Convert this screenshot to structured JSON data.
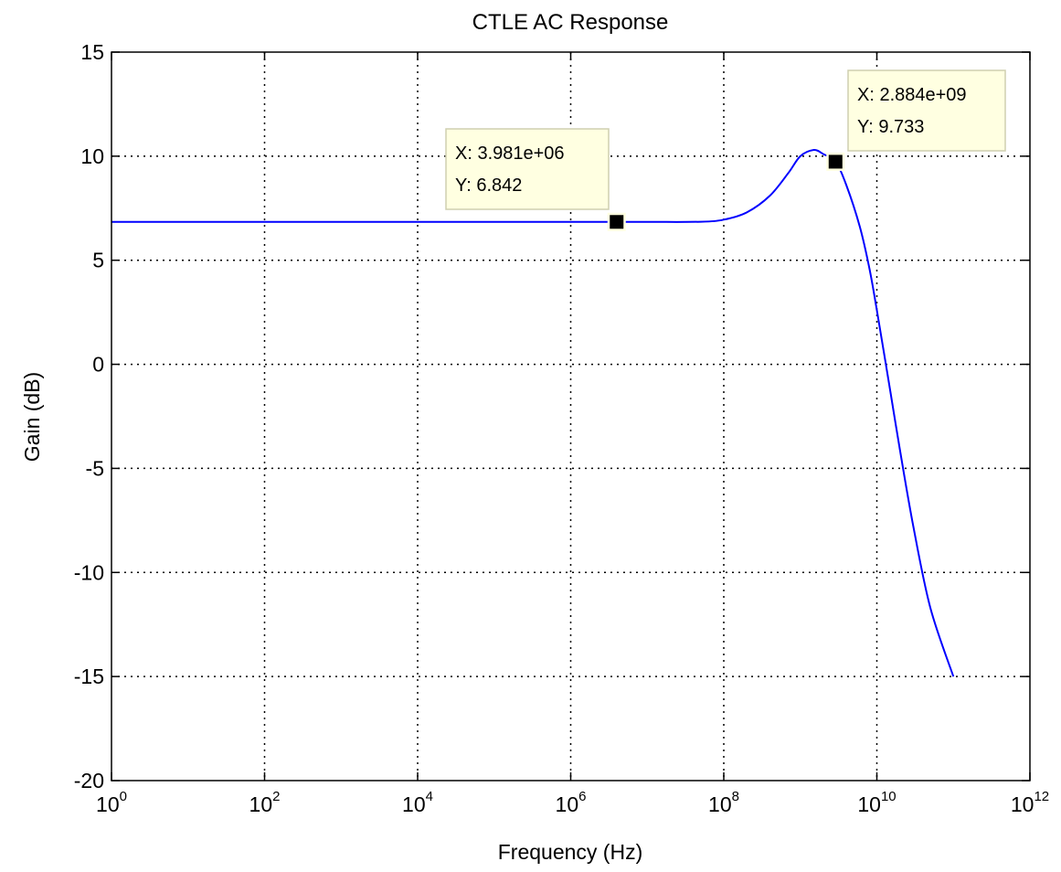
{
  "chart_data": {
    "type": "line",
    "title": "CTLE AC Response",
    "xlabel": "Frequency (Hz)",
    "ylabel": "Gain (dB)",
    "xscale": "log",
    "xlim": [
      1,
      1000000000000
    ],
    "ylim": [
      -20,
      15
    ],
    "grid": true,
    "line_color": "#0000ff",
    "x_ticks": [
      {
        "base": "10",
        "exp": "0"
      },
      {
        "base": "10",
        "exp": "2"
      },
      {
        "base": "10",
        "exp": "4"
      },
      {
        "base": "10",
        "exp": "6"
      },
      {
        "base": "10",
        "exp": "8"
      },
      {
        "base": "10",
        "exp": "10"
      },
      {
        "base": "10",
        "exp": "12"
      }
    ],
    "x_tick_values": [
      1,
      100,
      10000,
      1000000,
      100000000,
      10000000000,
      1000000000000
    ],
    "y_ticks": [
      "15",
      "10",
      "5",
      "0",
      "-5",
      "-10",
      "-15",
      "-20"
    ],
    "y_tick_values": [
      15,
      10,
      5,
      0,
      -5,
      -10,
      -15,
      -20
    ],
    "series": [
      {
        "x": [
          1,
          1000,
          1000000,
          10000000,
          50000000,
          100000000,
          200000000,
          400000000,
          700000000,
          1000000000,
          1500000000,
          2000000000,
          2884000000,
          4000000000,
          6000000000,
          8000000000,
          10000000000,
          15000000000,
          20000000000,
          30000000000,
          50000000000,
          100000000000
        ],
        "y": [
          6.842,
          6.842,
          6.842,
          6.842,
          6.85,
          6.95,
          7.3,
          8.1,
          9.2,
          10.0,
          10.3,
          10.1,
          9.733,
          8.6,
          6.6,
          4.6,
          2.6,
          -1.3,
          -4.1,
          -7.8,
          -11.7,
          -15.0
        ]
      }
    ],
    "annotations": [
      {
        "x": 3981000,
        "y": 6.842,
        "x_text": "X: 3.981e+06",
        "y_text": "Y: 6.842"
      },
      {
        "x": 2884000000,
        "y": 9.733,
        "x_text": "X: 2.884e+09",
        "y_text": "Y: 9.733"
      }
    ]
  }
}
